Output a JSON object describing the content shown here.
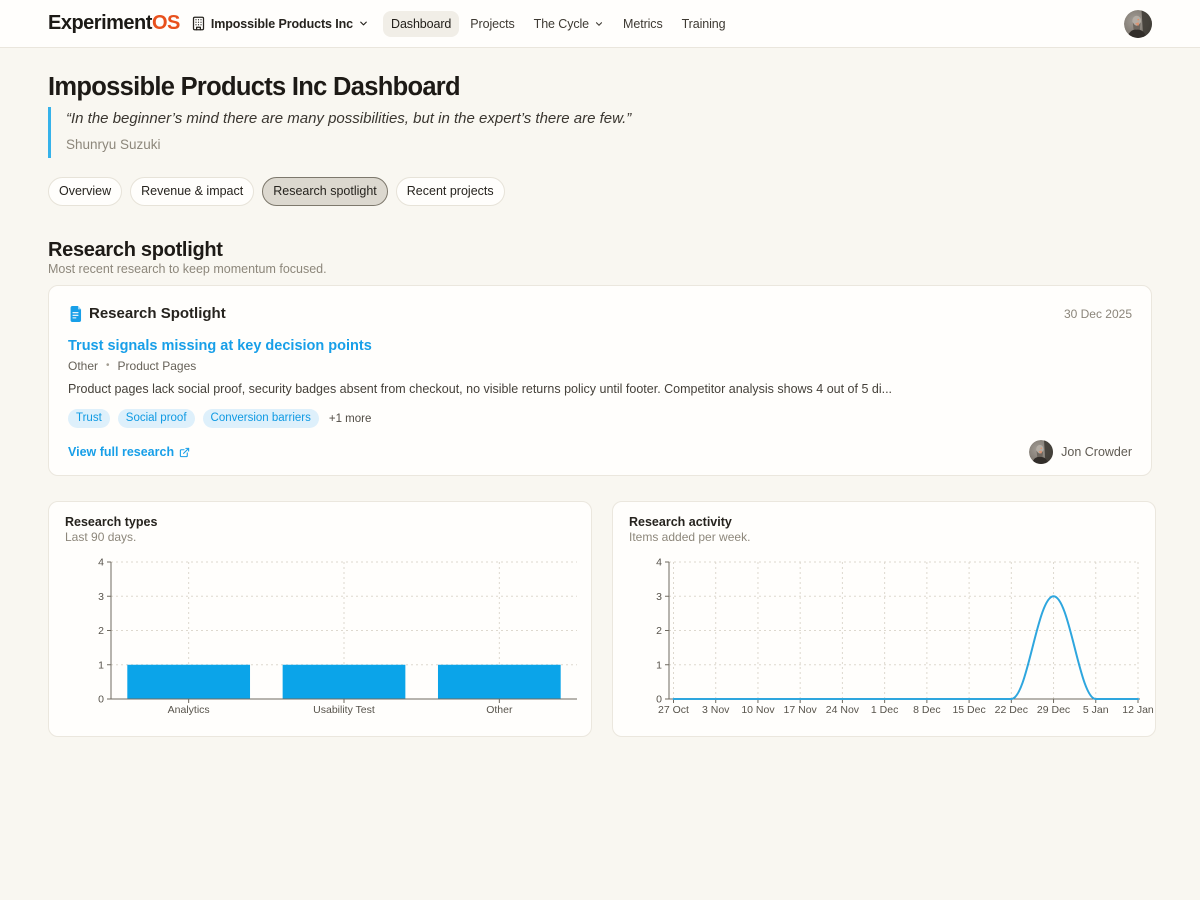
{
  "header": {
    "logo_part1": "Experiment",
    "logo_part2": "OS",
    "org_name": "Impossible Products Inc",
    "nav": [
      {
        "label": "Dashboard",
        "active": true,
        "dropdown": false
      },
      {
        "label": "Projects",
        "active": false,
        "dropdown": false
      },
      {
        "label": "The Cycle",
        "active": false,
        "dropdown": true
      },
      {
        "label": "Metrics",
        "active": false,
        "dropdown": false
      },
      {
        "label": "Training",
        "active": false,
        "dropdown": false
      }
    ]
  },
  "page": {
    "title": "Impossible Products Inc Dashboard",
    "quote_text": "“In the beginner’s mind there are many possibilities, but in the expert’s there are few.”",
    "quote_attribution": "Shunryu Suzuki",
    "tabs": [
      {
        "label": "Overview",
        "active": false
      },
      {
        "label": "Revenue & impact",
        "active": false
      },
      {
        "label": "Research spotlight",
        "active": true
      },
      {
        "label": "Recent projects",
        "active": false
      }
    ]
  },
  "section": {
    "title": "Research spotlight",
    "subtitle": "Most recent research to keep momentum focused."
  },
  "spotlight": {
    "card_title": "Research Spotlight",
    "date": "30 Dec 2025",
    "finding_title": "Trust signals missing at key decision points",
    "meta_type": "Other",
    "meta_separator": "•",
    "meta_source": "Product Pages",
    "description": "Product pages lack social proof, security badges absent from checkout, no visible returns policy until footer. Competitor analysis shows 4 out of 5 di...",
    "tags": [
      "Trust",
      "Social proof",
      "Conversion barriers"
    ],
    "more_tags": "+1 more",
    "link_label": "View full research",
    "author": "Jon Crowder"
  },
  "colors": {
    "accent_blue": "#189fe8",
    "bar_blue": "#0ba4e9",
    "line_blue": "#2ea6de",
    "brand_orange": "#e8501c",
    "quote_border": "#36b2ea",
    "axis": "#6f6a60",
    "grid": "#ddd8ce",
    "tick_label": "#57534b"
  },
  "chart_data": [
    {
      "type": "bar",
      "title": "Research types",
      "subtitle": "Last 90 days.",
      "categories": [
        "Analytics",
        "Usability Test",
        "Other"
      ],
      "values": [
        1,
        1,
        1
      ],
      "ylim": [
        0,
        4
      ],
      "yticks": [
        0,
        1,
        2,
        3,
        4
      ],
      "grid": "dotted",
      "legend": "none"
    },
    {
      "type": "line",
      "title": "Research activity",
      "subtitle": "Items added per week.",
      "x": [
        "27 Oct",
        "3 Nov",
        "10 Nov",
        "17 Nov",
        "24 Nov",
        "1 Dec",
        "8 Dec",
        "15 Dec",
        "22 Dec",
        "29 Dec",
        "5 Jan",
        "12 Jan"
      ],
      "values": [
        0,
        0,
        0,
        0,
        0,
        0,
        0,
        0,
        0,
        3,
        0,
        0
      ],
      "ylim": [
        0,
        4
      ],
      "yticks": [
        0,
        1,
        2,
        3,
        4
      ],
      "grid": "dotted",
      "legend": "none"
    }
  ]
}
